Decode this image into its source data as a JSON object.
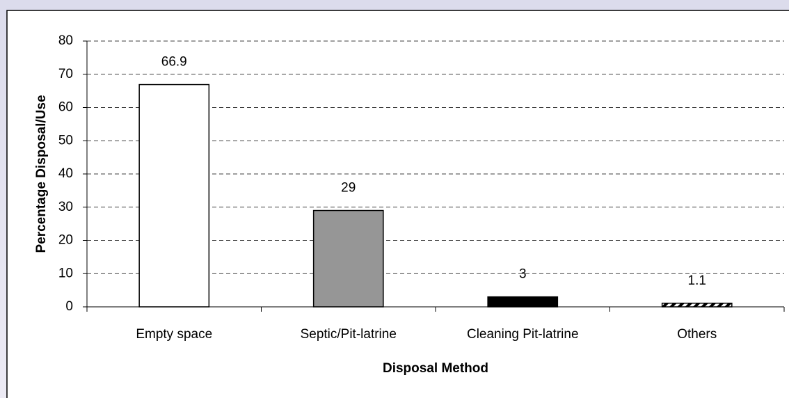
{
  "chart_data": {
    "type": "bar",
    "x_label": "Disposal Method",
    "y_label": "Percentage Disposal/Use",
    "categories": [
      "Empty space",
      "Septic/Pit-latrine",
      "Cleaning Pit-latrine",
      "Others"
    ],
    "values": [
      66.9,
      29,
      3,
      1.1
    ],
    "colors": [
      "#ffffff",
      "#969696",
      "#000000",
      "#000000"
    ],
    "hatch": [
      false,
      false,
      false,
      true
    ],
    "ylim": [
      0,
      80
    ],
    "yticks": [
      0,
      10,
      20,
      30,
      40,
      50,
      60,
      70,
      80
    ],
    "grid": true
  }
}
